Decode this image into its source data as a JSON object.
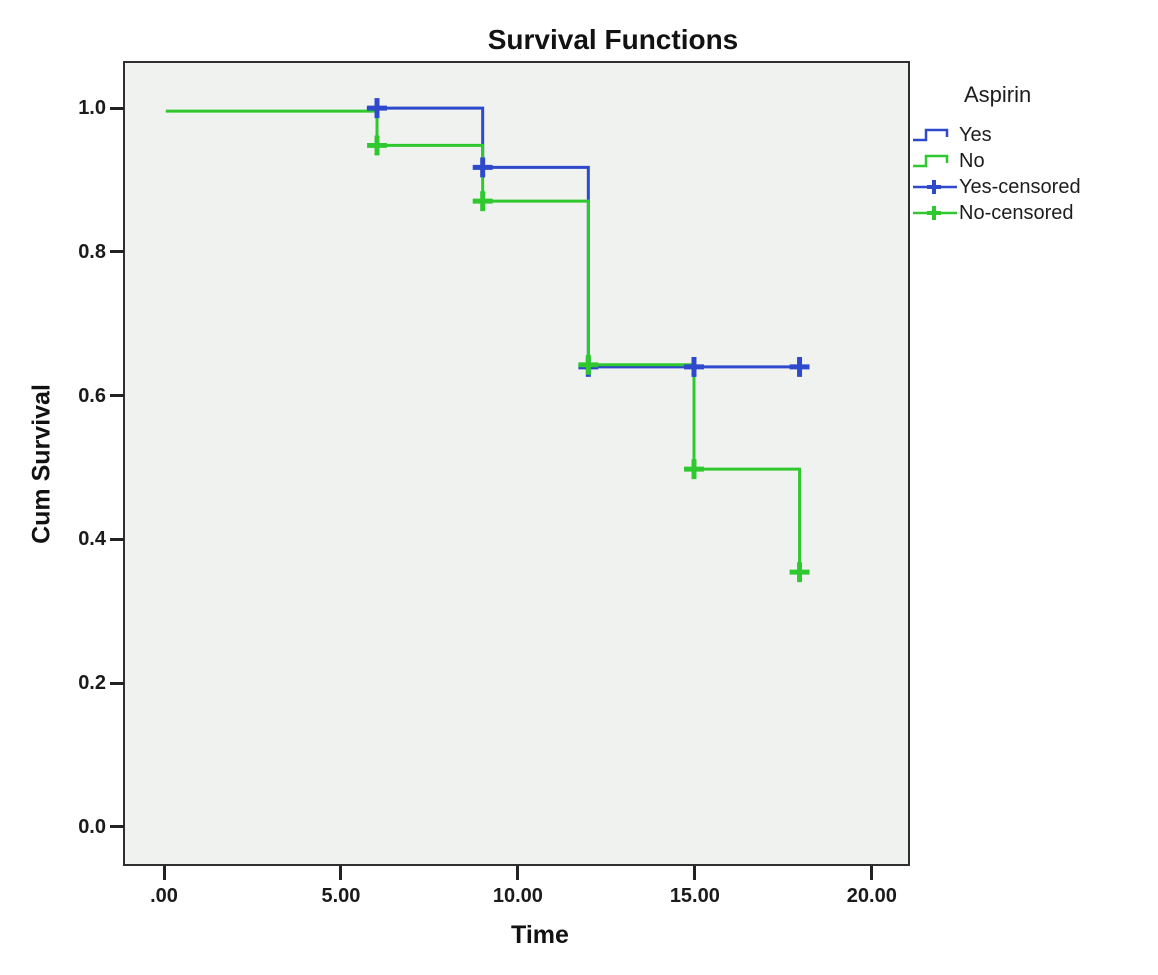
{
  "title": "Survival Functions",
  "axes": {
    "x_label": "Time",
    "y_label": "Cum Survival"
  },
  "legend": {
    "title": "Aspirin",
    "entries": [
      {
        "label": "Yes",
        "color": "#2E49CC",
        "glyph": "step"
      },
      {
        "label": "No",
        "color": "#2FC92F",
        "glyph": "step"
      },
      {
        "label": "Yes-censored",
        "color": "#2E49CC",
        "glyph": "censor"
      },
      {
        "label": "No-censored",
        "color": "#2FC92F",
        "glyph": "censor"
      }
    ]
  },
  "colors": {
    "yes_blue": "#2E49CC",
    "no_green": "#2FC92F",
    "plot_background": "#F0F2EF",
    "frame": "#2E2F31",
    "text": "#1B1B1B"
  },
  "chart_data": {
    "type": "line",
    "subtype": "kaplan-meier-step",
    "title": "Survival Functions",
    "xlabel": "Time",
    "ylabel": "Cum Survival",
    "xlim": [
      -1.15,
      21.1
    ],
    "ylim": [
      -0.057,
      1.064
    ],
    "grid": false,
    "legend_title": "Aspirin",
    "legend_position": "right",
    "x_ticks": [
      0,
      5,
      10,
      15,
      20
    ],
    "x_tick_labels": [
      ".00",
      "5.00",
      "10.00",
      "15.00",
      "20.00"
    ],
    "y_ticks": [
      1.0,
      0.8,
      0.6,
      0.4,
      0.2,
      0.0
    ],
    "y_tick_labels": [
      "1.0",
      "0.8",
      "0.6",
      "0.4",
      "0.2",
      "0.0"
    ],
    "series": [
      {
        "name": "Yes",
        "color": "#2E49CC",
        "step_points": [
          [
            0,
            1.0
          ],
          [
            9,
            1.0
          ],
          [
            9,
            0.917
          ],
          [
            12,
            0.917
          ],
          [
            12,
            0.638
          ],
          [
            18,
            0.638
          ]
        ],
        "censored_points": [
          [
            6,
            1.0
          ],
          [
            9,
            0.917
          ],
          [
            12,
            0.638
          ],
          [
            15,
            0.638
          ],
          [
            18,
            0.638
          ]
        ]
      },
      {
        "name": "No",
        "color": "#2FC92F",
        "step_points": [
          [
            0,
            1.0
          ],
          [
            6,
            1.0
          ],
          [
            6,
            0.952
          ],
          [
            9,
            0.952
          ],
          [
            9,
            0.874
          ],
          [
            12,
            0.874
          ],
          [
            12,
            0.645
          ],
          [
            15,
            0.645
          ],
          [
            15,
            0.499
          ],
          [
            18,
            0.499
          ],
          [
            18,
            0.355
          ]
        ],
        "censored_points": [
          [
            6,
            0.952
          ],
          [
            9,
            0.874
          ],
          [
            12,
            0.645
          ],
          [
            15,
            0.499
          ],
          [
            18,
            0.355
          ]
        ]
      }
    ]
  }
}
